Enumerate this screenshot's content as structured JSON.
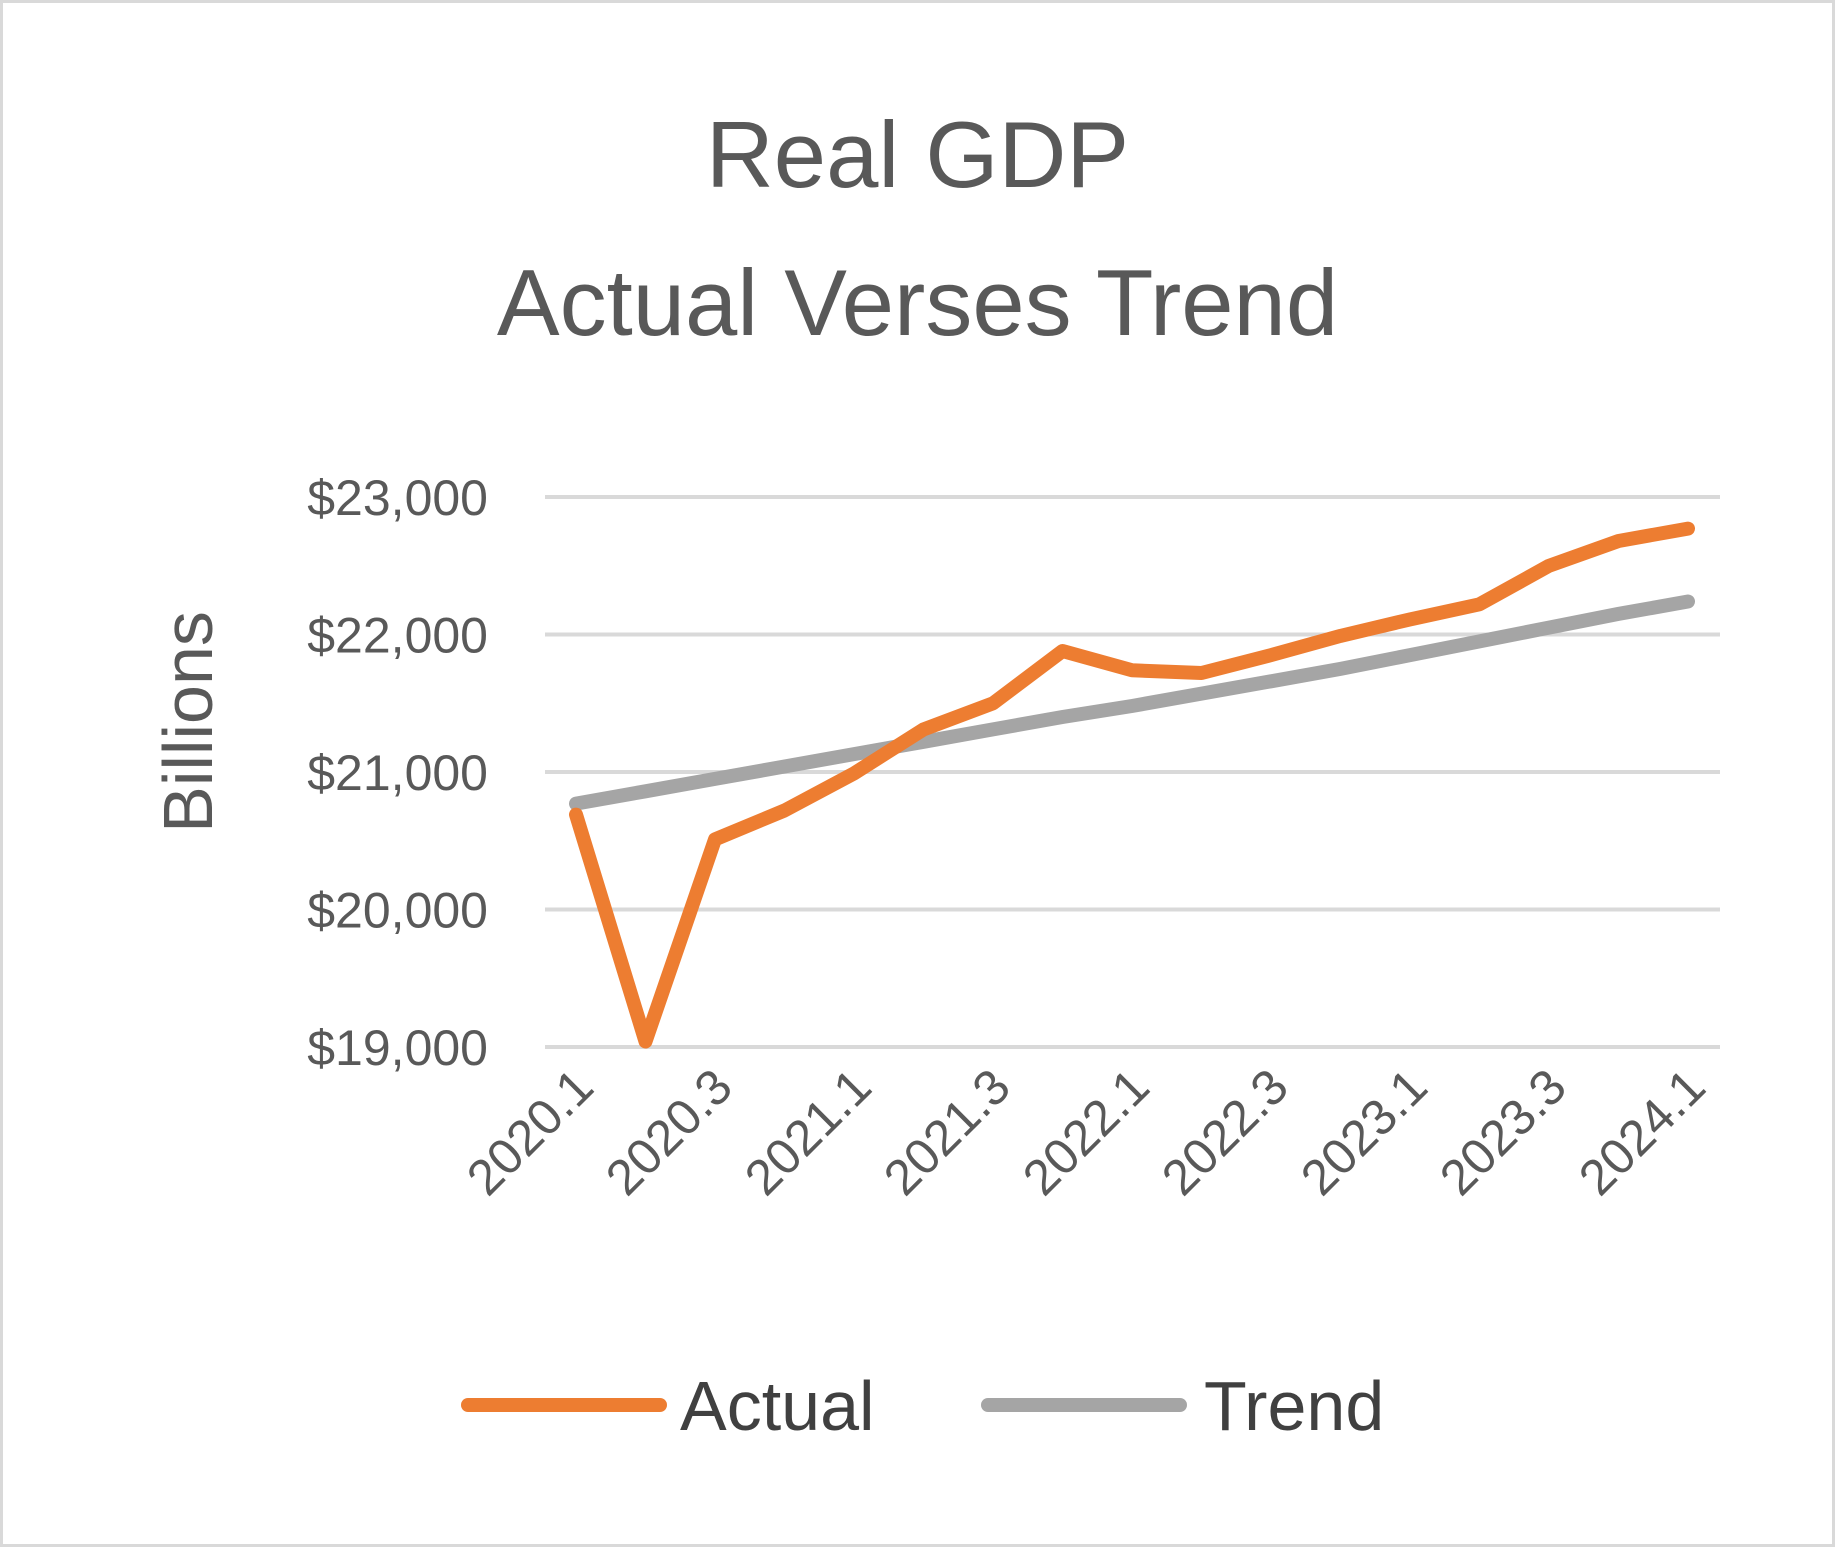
{
  "chart_data": {
    "type": "line",
    "title": "Real GDP",
    "subtitle": "Actual Verses Trend",
    "xlabel": "",
    "ylabel": "Billions",
    "x": [
      "2020.1",
      "2020.2",
      "2020.3",
      "2020.4",
      "2021.1",
      "2021.2",
      "2021.3",
      "2021.4",
      "2022.1",
      "2022.2",
      "2022.3",
      "2022.4",
      "2023.1",
      "2023.2",
      "2023.3",
      "2023.4",
      "2024.1"
    ],
    "x_tick_labels": [
      "2020.1",
      "2020.3",
      "2021.1",
      "2021.3",
      "2022.1",
      "2022.3",
      "2023.1",
      "2023.3",
      "2024.1"
    ],
    "ylim": [
      19000,
      23000
    ],
    "y_tick_labels": [
      "$19,000",
      "$20,000",
      "$21,000",
      "$22,000",
      "$23,000"
    ],
    "y_ticks": [
      19000,
      20000,
      21000,
      22000,
      23000
    ],
    "grid": true,
    "legend_position": "bottom",
    "series": [
      {
        "name": "Actual",
        "color": "#ed7d31",
        "values": [
          20690,
          19040,
          20510,
          20720,
          20990,
          21310,
          21500,
          21880,
          21740,
          21720,
          21850,
          21990,
          22110,
          22220,
          22500,
          22680,
          22770
        ]
      },
      {
        "name": "Trend",
        "color": "#a5a5a5",
        "values": [
          20770,
          20860,
          20950,
          21040,
          21130,
          21220,
          21310,
          21400,
          21480,
          21570,
          21660,
          21750,
          21850,
          21950,
          22050,
          22150,
          22240
        ]
      }
    ]
  }
}
